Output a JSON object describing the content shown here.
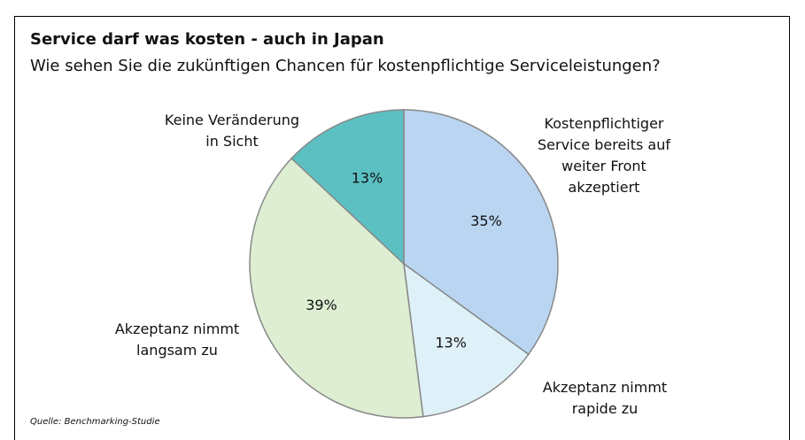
{
  "chart_data": {
    "type": "pie",
    "title": "Service darf was kosten - auch in Japan",
    "subtitle": "Wie sehen Sie die zukünftigen Chancen für kostenpflichtige Serviceleistungen?",
    "categories": [
      "Kostenpflichtiger\nService bereits auf\nweiter Front\nakzeptiert",
      "Akzeptanz nimmt\nrapide zu",
      "Akzeptanz nimmt\nlangsam zu",
      "Keine Veränderung\nin Sicht"
    ],
    "values": [
      35,
      13,
      39,
      13
    ],
    "value_labels": [
      "35%",
      "13%",
      "39%",
      "13%"
    ],
    "colors": [
      "#b9d5f1",
      "#dff1f8",
      "#ddeed2",
      "#5cc0c2"
    ],
    "source": "Quelle: Benchmarking-Studie"
  }
}
